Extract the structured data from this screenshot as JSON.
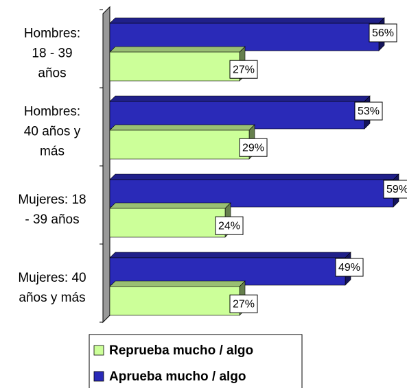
{
  "chart_data": {
    "type": "bar3d_horizontal",
    "categories": [
      "Hombres:\n18 - 39\naños",
      "Hombres:\n40 años y\nmás",
      "Mujeres: 18\n- 39 años",
      "Mujeres: 40\naños y más"
    ],
    "series": [
      {
        "name": "Aprueba mucho / algo",
        "color": "#2a2ab8",
        "values": [
          56,
          53,
          59,
          49
        ],
        "value_labels": [
          "56%",
          "53%",
          "59%",
          "49%"
        ]
      },
      {
        "name": "Reprueba mucho / algo",
        "color": "#ccff99",
        "values": [
          27,
          29,
          24,
          27
        ],
        "value_labels": [
          "27%",
          "29%",
          "24%",
          "27%"
        ]
      }
    ],
    "xlim": [
      0,
      60
    ]
  }
}
